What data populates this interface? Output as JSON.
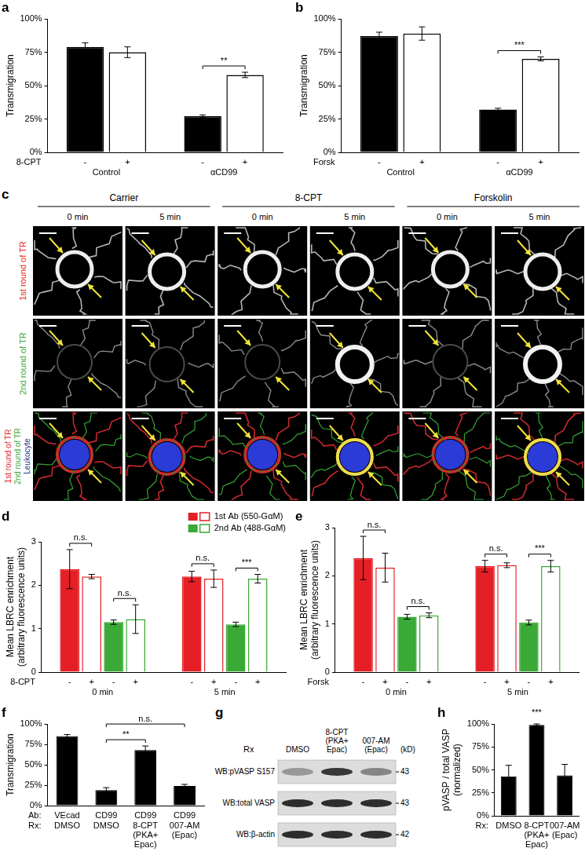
{
  "chart_data": [
    {
      "label": "a",
      "type": "bar",
      "y_label": "Transmigration",
      "x_label": "8-CPT",
      "categories": [
        "Control",
        "αCD99"
      ],
      "series": [
        {
          "name": "-",
          "color": "#000000",
          "values": [
            79,
            27
          ],
          "errors": [
            3,
            1
          ]
        },
        {
          "name": "+",
          "color": "#000000",
          "values": [
            75,
            58
          ],
          "errors": [
            4,
            2
          ]
        }
      ],
      "ylim": [
        0,
        100
      ],
      "yticks": [
        {
          "value": 0,
          "label": "0%"
        },
        {
          "value": 25,
          "label": "25%"
        },
        {
          "value": 50,
          "label": "50%"
        },
        {
          "value": 75,
          "label": "75%"
        },
        {
          "value": 100,
          "label": "100%"
        }
      ],
      "annotations": [
        {
          "text": "**",
          "category": 1,
          "from": 0,
          "to": 1
        }
      ]
    },
    {
      "label": "b",
      "type": "bar",
      "y_label": "Transmigration",
      "x_label": "Forsk",
      "categories": [
        "Control",
        "αCD99"
      ],
      "series": [
        {
          "name": "-",
          "color": "#000000",
          "values": [
            87,
            32
          ],
          "errors": [
            3,
            1
          ]
        },
        {
          "name": "+",
          "color": "#000000",
          "values": [
            89,
            70
          ],
          "errors": [
            5,
            1.5
          ]
        }
      ],
      "ylim": [
        0,
        100
      ],
      "yticks": [
        {
          "value": 0,
          "label": "0%"
        },
        {
          "value": 25,
          "label": "25%"
        },
        {
          "value": 50,
          "label": "50%"
        },
        {
          "value": 75,
          "label": "75%"
        },
        {
          "value": 100,
          "label": "100%"
        }
      ],
      "annotations": [
        {
          "text": "***",
          "category": 1,
          "from": 0,
          "to": 1
        }
      ]
    },
    {
      "label": "d",
      "type": "bar",
      "y_label": [
        "Mean LBRC enrichment",
        "(arbitrary fluorescence units)"
      ],
      "x_label": "8-CPT",
      "categories": [
        "0 min",
        "5 min"
      ],
      "series": [
        {
          "name": "-",
          "color": "#e41f26",
          "values": [
            2.37,
            2.2
          ],
          "errors": [
            0.45,
            0.12
          ]
        },
        {
          "name": "+",
          "color": "#e41f26",
          "values": [
            2.2,
            2.15
          ],
          "errors": [
            0.05,
            0.2
          ]
        },
        {
          "name": "-",
          "color": "#3aa935",
          "values": [
            1.15,
            1.1
          ],
          "errors": [
            0.05,
            0.05
          ]
        },
        {
          "name": "+",
          "color": "#3aa935",
          "values": [
            1.22,
            2.15
          ],
          "errors": [
            0.33,
            0.1
          ]
        }
      ],
      "legend_entries": [
        {
          "name": "1st Ab (550-GαM)",
          "color": "#e41f26"
        },
        {
          "name": "2nd Ab (488-GαM)",
          "color": "#3aa935"
        }
      ],
      "ylim": [
        0,
        3
      ],
      "yticks": [
        0,
        1,
        2,
        3
      ],
      "annotations": [
        {
          "text": "n.s.",
          "category": 0,
          "from": 0,
          "to": 1
        },
        {
          "text": "n.s.",
          "category": 0,
          "from": 2,
          "to": 3
        },
        {
          "text": "n.s.",
          "category": 1,
          "from": 0,
          "to": 1
        },
        {
          "text": "***",
          "category": 1,
          "from": 2,
          "to": 3
        }
      ]
    },
    {
      "label": "e",
      "type": "bar",
      "y_label": [
        "Mean LBRC enrichment",
        "(arbitrary fluorescence units)"
      ],
      "x_label": "Forsk",
      "categories": [
        "0 min",
        "5 min"
      ],
      "series": [
        {
          "name": "-",
          "color": "#e41f26",
          "values": [
            2.37,
            2.2
          ],
          "errors": [
            0.45,
            0.12
          ]
        },
        {
          "name": "+",
          "color": "#e41f26",
          "values": [
            2.17,
            2.22
          ],
          "errors": [
            0.3,
            0.05
          ]
        },
        {
          "name": "-",
          "color": "#3aa935",
          "values": [
            1.15,
            1.03
          ],
          "errors": [
            0.05,
            0.05
          ]
        },
        {
          "name": "+",
          "color": "#3aa935",
          "values": [
            1.18,
            2.2
          ],
          "errors": [
            0.05,
            0.12
          ]
        }
      ],
      "ylim": [
        0,
        3
      ],
      "yticks": [
        0,
        1,
        2,
        3
      ],
      "annotations": [
        {
          "text": "n.s.",
          "category": 0,
          "from": 0,
          "to": 1
        },
        {
          "text": "n.s.",
          "category": 0,
          "from": 2,
          "to": 3
        },
        {
          "text": "n.s.",
          "category": 1,
          "from": 0,
          "to": 1
        },
        {
          "text": "***",
          "category": 1,
          "from": 2,
          "to": 3
        }
      ]
    },
    {
      "label": "f",
      "type": "bar",
      "y_label": "Transmigration",
      "x_label": "Rx:",
      "x_row": {
        "label": "Ab:",
        "values": [
          "VEcad",
          "CD99",
          "CD99",
          "CD99"
        ]
      },
      "categories": [
        "DMSO",
        "DMSO",
        [
          "8-CPT",
          "(PKA+",
          "Epac)"
        ],
        [
          "007-AM",
          "(Epac)"
        ]
      ],
      "values": [
        85,
        19,
        68,
        24
      ],
      "errors": [
        2,
        3,
        5,
        2
      ],
      "color": "#000000",
      "ylim": [
        0,
        100
      ],
      "yticks": [
        {
          "value": 0,
          "label": "0%"
        },
        {
          "value": 25,
          "label": "25%"
        },
        {
          "value": 50,
          "label": "50%"
        },
        {
          "value": 75,
          "label": "75%"
        },
        {
          "value": 100,
          "label": "100%"
        }
      ],
      "annotations": [
        {
          "text": "**",
          "from": 1,
          "to": 2
        },
        {
          "text": "n.s.",
          "from": 1,
          "to": 3
        }
      ]
    },
    {
      "label": "h",
      "type": "bar",
      "y_label": [
        "pVASP / total VASP",
        "(normalized)"
      ],
      "x_label": "Rx:",
      "categories": [
        "DMSO",
        [
          "8-CPT",
          "(PKA+",
          "Epac)"
        ],
        [
          "007-AM",
          "(Epac)"
        ]
      ],
      "values": [
        43,
        99,
        44
      ],
      "errors": [
        12,
        1,
        12
      ],
      "color": "#000000",
      "ylim": [
        0,
        100
      ],
      "yticks": [
        {
          "value": 0,
          "label": "0%"
        },
        {
          "value": 25,
          "label": "25%"
        },
        {
          "value": 50,
          "label": "50%"
        },
        {
          "value": 75,
          "label": "75%"
        },
        {
          "value": 100,
          "label": "100%"
        }
      ],
      "annotations": [
        {
          "text": "***",
          "from": 1,
          "to": 1
        }
      ]
    }
  ],
  "image_panels": {
    "c": {
      "label": "c",
      "columns": [
        {
          "title": "Carrier",
          "times": [
            "0 min",
            "5 min"
          ]
        },
        {
          "title": "8-CPT",
          "times": [
            "0 min",
            "5 min"
          ]
        },
        {
          "title": "Forskolin",
          "times": [
            "0 min",
            "5 min"
          ]
        }
      ],
      "rows": [
        {
          "lines": [
            {
              "text": "1st round of TR",
              "color": "#e41f26"
            }
          ]
        },
        {
          "lines": [
            {
              "text": "2nd round of TR",
              "color": "#3aa935"
            }
          ]
        },
        {
          "lines": [
            {
              "text": "1st round of TR",
              "color": "#e41f26"
            },
            {
              "text": "2nd round of TR",
              "color": "#3aa935"
            },
            {
              "text": "Leukocyte",
              "color": "#2e3192"
            }
          ]
        }
      ]
    },
    "g": {
      "label": "g",
      "treatment_label": "Rx",
      "treatments": [
        "DMSO",
        [
          "8-CPT",
          "(PKA+",
          "Epac)"
        ],
        [
          "007-AM",
          "(Epac)"
        ]
      ],
      "unit": "(kD)",
      "blots": [
        {
          "name": "WB:pVASP S157",
          "kd": 43
        },
        {
          "name": "WB:total VASP",
          "kd": 43
        },
        {
          "name": "WB:β-actin",
          "kd": 42
        }
      ]
    }
  }
}
